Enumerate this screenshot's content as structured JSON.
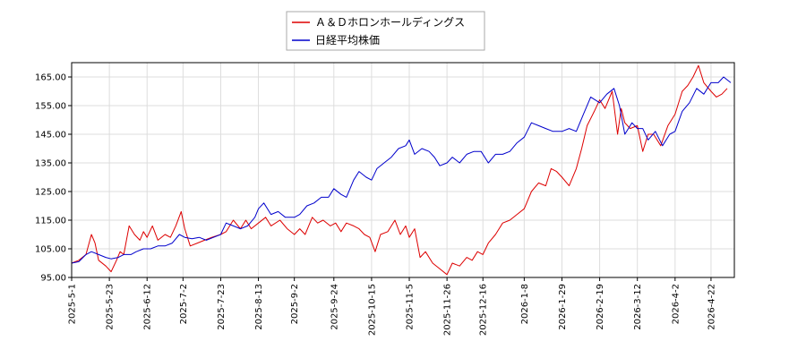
{
  "chart_data": {
    "type": "line",
    "title": "",
    "xlabel": "",
    "ylabel": "",
    "ylim": [
      95,
      170
    ],
    "y_ticks": [
      95,
      105,
      115,
      125,
      135,
      145,
      155,
      165
    ],
    "y_tick_labels": [
      "95.00",
      "105.00",
      "115.00",
      "125.00",
      "135.00",
      "145.00",
      "155.00",
      "165.00"
    ],
    "x_range": [
      "2025-05-01",
      "2026-05-05"
    ],
    "x_ticks": [
      "2025-05-01",
      "2025-05-22",
      "2025-06-12",
      "2025-07-02",
      "2025-07-23",
      "2025-08-13",
      "2025-09-02",
      "2025-09-24",
      "2025-10-15",
      "2025-11-05",
      "2025-11-26",
      "2025-12-16",
      "2026-01-08",
      "2026-01-29",
      "2026-02-19",
      "2026-03-12",
      "2026-04-02",
      "2026-04-22"
    ],
    "x_tick_labels": [
      "2025-5-1",
      "2025-5-23",
      "2025-6-12",
      "2025-7-2",
      "2025-7-23",
      "2025-8-13",
      "2025-9-2",
      "2025-9-24",
      "2025-10-15",
      "2025-11-5",
      "2025-11-26",
      "2025-12-16",
      "2026-1-8",
      "2026-1-29",
      "2026-2-19",
      "2026-3-12",
      "2026-4-2",
      "2026-4-22"
    ],
    "grid": true,
    "legend_position": "top-center",
    "series": [
      {
        "name": "Ａ＆Ｄホロンホールディングス",
        "color": "#dd0000",
        "points": [
          [
            "2025-05-01",
            100
          ],
          [
            "2025-05-05",
            101
          ],
          [
            "2025-05-09",
            103
          ],
          [
            "2025-05-12",
            110
          ],
          [
            "2025-05-14",
            107
          ],
          [
            "2025-05-16",
            101
          ],
          [
            "2025-05-20",
            99
          ],
          [
            "2025-05-23",
            97
          ],
          [
            "2025-05-26",
            101
          ],
          [
            "2025-05-28",
            104
          ],
          [
            "2025-05-30",
            103
          ],
          [
            "2025-06-02",
            113
          ],
          [
            "2025-06-05",
            110
          ],
          [
            "2025-06-08",
            108
          ],
          [
            "2025-06-10",
            111
          ],
          [
            "2025-06-12",
            109
          ],
          [
            "2025-06-15",
            113
          ],
          [
            "2025-06-18",
            108
          ],
          [
            "2025-06-22",
            110
          ],
          [
            "2025-06-25",
            109
          ],
          [
            "2025-06-28",
            113
          ],
          [
            "2025-07-01",
            118
          ],
          [
            "2025-07-03",
            112
          ],
          [
            "2025-07-06",
            106
          ],
          [
            "2025-07-10",
            107
          ],
          [
            "2025-07-14",
            108
          ],
          [
            "2025-07-18",
            109
          ],
          [
            "2025-07-23",
            110
          ],
          [
            "2025-07-26",
            111
          ],
          [
            "2025-07-30",
            115
          ],
          [
            "2025-08-03",
            112
          ],
          [
            "2025-08-06",
            115
          ],
          [
            "2025-08-09",
            112
          ],
          [
            "2025-08-13",
            114
          ],
          [
            "2025-08-17",
            116
          ],
          [
            "2025-08-20",
            113
          ],
          [
            "2025-08-25",
            115
          ],
          [
            "2025-08-29",
            112
          ],
          [
            "2025-09-02",
            110
          ],
          [
            "2025-09-05",
            112
          ],
          [
            "2025-09-08",
            110
          ],
          [
            "2025-09-12",
            116
          ],
          [
            "2025-09-15",
            114
          ],
          [
            "2025-09-18",
            115
          ],
          [
            "2025-09-22",
            113
          ],
          [
            "2025-09-25",
            114
          ],
          [
            "2025-09-28",
            111
          ],
          [
            "2025-10-01",
            114
          ],
          [
            "2025-10-05",
            113
          ],
          [
            "2025-10-08",
            112
          ],
          [
            "2025-10-11",
            110
          ],
          [
            "2025-10-14",
            109
          ],
          [
            "2025-10-17",
            104
          ],
          [
            "2025-10-20",
            110
          ],
          [
            "2025-10-24",
            111
          ],
          [
            "2025-10-28",
            115
          ],
          [
            "2025-10-31",
            110
          ],
          [
            "2025-11-03",
            113
          ],
          [
            "2025-11-05",
            109
          ],
          [
            "2025-11-08",
            112
          ],
          [
            "2025-11-11",
            102
          ],
          [
            "2025-11-14",
            104
          ],
          [
            "2025-11-18",
            100
          ],
          [
            "2025-11-22",
            98
          ],
          [
            "2025-11-26",
            96
          ],
          [
            "2025-11-29",
            100
          ],
          [
            "2025-12-03",
            99
          ],
          [
            "2025-12-07",
            102
          ],
          [
            "2025-12-10",
            101
          ],
          [
            "2025-12-13",
            104
          ],
          [
            "2025-12-16",
            103
          ],
          [
            "2025-12-19",
            107
          ],
          [
            "2025-12-23",
            110
          ],
          [
            "2025-12-27",
            114
          ],
          [
            "2025-12-31",
            115
          ],
          [
            "2026-01-04",
            117
          ],
          [
            "2026-01-08",
            119
          ],
          [
            "2026-01-12",
            125
          ],
          [
            "2026-01-16",
            128
          ],
          [
            "2026-01-20",
            127
          ],
          [
            "2026-01-23",
            133
          ],
          [
            "2026-01-26",
            132
          ],
          [
            "2026-01-29",
            130
          ],
          [
            "2026-02-02",
            127
          ],
          [
            "2026-02-06",
            133
          ],
          [
            "2026-02-09",
            140
          ],
          [
            "2026-02-12",
            148
          ],
          [
            "2026-02-16",
            153
          ],
          [
            "2026-02-19",
            157
          ],
          [
            "2026-02-22",
            154
          ],
          [
            "2026-02-26",
            160
          ],
          [
            "2026-03-01",
            145
          ],
          [
            "2026-03-03",
            154
          ],
          [
            "2026-03-05",
            149
          ],
          [
            "2026-03-08",
            147
          ],
          [
            "2026-03-12",
            148
          ],
          [
            "2026-03-15",
            139
          ],
          [
            "2026-03-18",
            145
          ],
          [
            "2026-03-21",
            145
          ],
          [
            "2026-03-25",
            141
          ],
          [
            "2026-03-29",
            148
          ],
          [
            "2026-04-02",
            152
          ],
          [
            "2026-04-06",
            160
          ],
          [
            "2026-04-09",
            162
          ],
          [
            "2026-04-12",
            165
          ],
          [
            "2026-04-15",
            169
          ],
          [
            "2026-04-18",
            163
          ],
          [
            "2026-04-22",
            160
          ],
          [
            "2026-04-25",
            158
          ],
          [
            "2026-04-28",
            159
          ],
          [
            "2026-05-01",
            161
          ]
        ]
      },
      {
        "name": "日経平均株価",
        "color": "#0000cc",
        "points": [
          [
            "2025-05-01",
            100
          ],
          [
            "2025-05-05",
            100.5
          ],
          [
            "2025-05-09",
            103
          ],
          [
            "2025-05-12",
            104
          ],
          [
            "2025-05-16",
            103
          ],
          [
            "2025-05-20",
            102
          ],
          [
            "2025-05-23",
            101.5
          ],
          [
            "2025-05-27",
            102
          ],
          [
            "2025-05-30",
            103
          ],
          [
            "2025-06-03",
            103
          ],
          [
            "2025-06-06",
            104
          ],
          [
            "2025-06-10",
            105
          ],
          [
            "2025-06-14",
            105
          ],
          [
            "2025-06-18",
            106
          ],
          [
            "2025-06-22",
            106
          ],
          [
            "2025-06-26",
            107
          ],
          [
            "2025-06-30",
            110
          ],
          [
            "2025-07-03",
            109
          ],
          [
            "2025-07-07",
            108.5
          ],
          [
            "2025-07-11",
            109
          ],
          [
            "2025-07-15",
            108
          ],
          [
            "2025-07-19",
            109
          ],
          [
            "2025-07-23",
            110
          ],
          [
            "2025-07-26",
            114
          ],
          [
            "2025-07-30",
            113
          ],
          [
            "2025-08-03",
            112
          ],
          [
            "2025-08-07",
            113
          ],
          [
            "2025-08-11",
            116
          ],
          [
            "2025-08-13",
            119
          ],
          [
            "2025-08-16",
            121
          ],
          [
            "2025-08-20",
            117
          ],
          [
            "2025-08-24",
            118
          ],
          [
            "2025-08-28",
            116
          ],
          [
            "2025-09-02",
            116
          ],
          [
            "2025-09-05",
            117
          ],
          [
            "2025-09-09",
            120
          ],
          [
            "2025-09-13",
            121
          ],
          [
            "2025-09-17",
            123
          ],
          [
            "2025-09-21",
            123
          ],
          [
            "2025-09-24",
            126
          ],
          [
            "2025-09-28",
            124
          ],
          [
            "2025-10-01",
            123
          ],
          [
            "2025-10-05",
            129
          ],
          [
            "2025-10-08",
            132
          ],
          [
            "2025-10-12",
            130
          ],
          [
            "2025-10-15",
            129
          ],
          [
            "2025-10-18",
            133
          ],
          [
            "2025-10-22",
            135
          ],
          [
            "2025-10-26",
            137
          ],
          [
            "2025-10-30",
            140
          ],
          [
            "2025-11-03",
            141
          ],
          [
            "2025-11-05",
            143
          ],
          [
            "2025-11-08",
            138
          ],
          [
            "2025-11-12",
            140
          ],
          [
            "2025-11-16",
            139
          ],
          [
            "2025-11-19",
            137
          ],
          [
            "2025-11-22",
            134
          ],
          [
            "2025-11-26",
            135
          ],
          [
            "2025-11-29",
            137
          ],
          [
            "2025-12-03",
            135
          ],
          [
            "2025-12-07",
            138
          ],
          [
            "2025-12-11",
            139
          ],
          [
            "2025-12-15",
            139
          ],
          [
            "2025-12-19",
            135
          ],
          [
            "2025-12-23",
            138
          ],
          [
            "2025-12-27",
            138
          ],
          [
            "2025-12-31",
            139
          ],
          [
            "2026-01-04",
            142
          ],
          [
            "2026-01-08",
            144
          ],
          [
            "2026-01-12",
            149
          ],
          [
            "2026-01-16",
            148
          ],
          [
            "2026-01-20",
            147
          ],
          [
            "2026-01-24",
            146
          ],
          [
            "2026-01-29",
            146
          ],
          [
            "2026-02-02",
            147
          ],
          [
            "2026-02-06",
            146
          ],
          [
            "2026-02-10",
            152
          ],
          [
            "2026-02-14",
            158
          ],
          [
            "2026-02-19",
            156
          ],
          [
            "2026-02-23",
            159
          ],
          [
            "2026-02-27",
            161
          ],
          [
            "2026-03-02",
            155
          ],
          [
            "2026-03-05",
            145
          ],
          [
            "2026-03-09",
            149
          ],
          [
            "2026-03-12",
            147
          ],
          [
            "2026-03-15",
            147
          ],
          [
            "2026-03-18",
            143
          ],
          [
            "2026-03-22",
            146
          ],
          [
            "2026-03-26",
            141
          ],
          [
            "2026-03-30",
            145
          ],
          [
            "2026-04-02",
            146
          ],
          [
            "2026-04-06",
            153
          ],
          [
            "2026-04-10",
            156
          ],
          [
            "2026-04-14",
            161
          ],
          [
            "2026-04-18",
            159
          ],
          [
            "2026-04-22",
            163
          ],
          [
            "2026-04-26",
            163
          ],
          [
            "2026-04-29",
            165
          ],
          [
            "2026-05-03",
            163
          ]
        ]
      }
    ]
  }
}
